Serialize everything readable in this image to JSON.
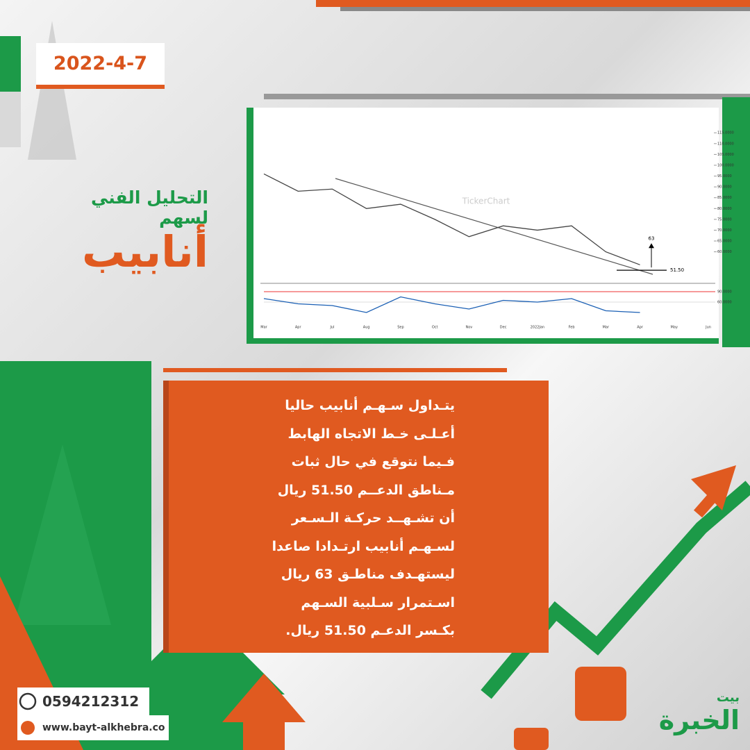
{
  "date": "2022-4-7",
  "title": {
    "line1": "التحليل الفني لسهم",
    "name": "أنابيب"
  },
  "chart_data": {
    "type": "line",
    "watermark": "TickerChart",
    "categories": [
      "Mar",
      "Apr",
      "Jul",
      "Aug",
      "Sep",
      "Oct",
      "Nov",
      "Dec",
      "2022Jan",
      "Feb",
      "Mar",
      "Apr",
      "May",
      "Jun"
    ],
    "values": [
      96,
      88,
      89,
      80,
      82,
      75,
      67,
      72,
      70,
      72,
      60,
      54,
      null,
      null
    ],
    "color": "#444444",
    "ylim": [
      48,
      117
    ],
    "yticks": [
      {
        "value": 115,
        "label": "115.0000"
      },
      {
        "value": 110,
        "label": "110.0000"
      },
      {
        "value": 105,
        "label": "105.0000"
      },
      {
        "value": 100,
        "label": "100.0000"
      },
      {
        "value": 95,
        "label": "95.0000"
      },
      {
        "value": 90,
        "label": "90.0000"
      },
      {
        "value": 85,
        "label": "85.0000"
      },
      {
        "value": 80,
        "label": "80.0000"
      },
      {
        "value": 75,
        "label": "75.0000"
      },
      {
        "value": 70,
        "label": "70.0000"
      },
      {
        "value": 65,
        "label": "65.0000"
      },
      {
        "value": 60,
        "label": "60.0000"
      }
    ],
    "annotations": {
      "target": 63,
      "support": {
        "value": 51.5,
        "label": "51.50"
      }
    },
    "rsi": {
      "values": [
        70,
        55,
        50,
        30,
        75,
        55,
        40,
        65,
        60,
        70,
        35,
        30,
        null,
        null
      ],
      "color": "#1a5fb4",
      "ylim": [
        0,
        100
      ],
      "yticks": [
        {
          "value": 90,
          "label": "90.0000"
        },
        {
          "value": 60,
          "label": "60.0000"
        }
      ]
    }
  },
  "paragraph": [
    "يتـداول سـهـم أنابيب حاليا",
    "أعـلـى خـط الاتجاه الهابط",
    "فـيما نتوقع في حال ثبات",
    "مـناطق الدعــم 51.50 ريال",
    "أن تشـهــد حركـة الـسـعر",
    "لسـهـم أنابيب ارتـدادا صاعدا",
    "ليستهـدف مناطـق 63 ريال",
    "اسـتمرار سـلبية السـهم",
    "بكـسر الدعـم 51.50 ريال."
  ],
  "contact": {
    "phone": "0594212312",
    "website": "www.bayt-alkhebra.co"
  },
  "logo": {
    "top": "بيت",
    "main": "الخبرة"
  }
}
